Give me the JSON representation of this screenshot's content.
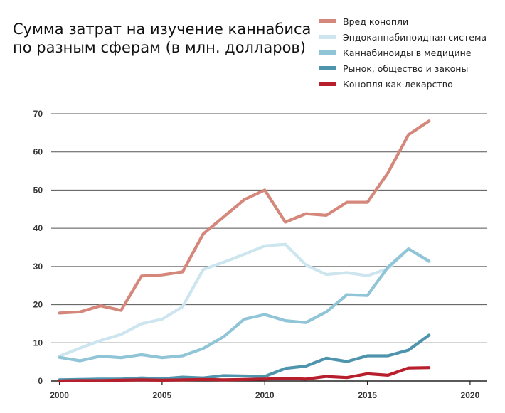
{
  "title_lines": [
    "Сумма затрат на изучение каннабиса",
    "по разным сферам (в млн. долларов)"
  ],
  "colors": {
    "harm": "#d4877a",
    "endocannabinoid": "#cde5ef",
    "medicine": "#90c5d8",
    "market": "#4e94ad",
    "drug": "#b81f2c"
  },
  "chart_data": {
    "type": "line",
    "title": "Сумма затрат на изучение каннабиса по разным сферам (в млн. долларов)",
    "xlabel": "",
    "ylabel": "",
    "xlim": [
      1999.6,
      2020.8
    ],
    "ylim": [
      0,
      70
    ],
    "x_ticks": [
      2000,
      2005,
      2010,
      2015,
      2020
    ],
    "y_ticks": [
      0,
      10,
      20,
      30,
      40,
      50,
      60,
      70
    ],
    "grid": "horizontal",
    "legend_position": "top-right",
    "x": [
      2000,
      2001,
      2002,
      2003,
      2004,
      2005,
      2006,
      2007,
      2008,
      2009,
      2010,
      2011,
      2012,
      2013,
      2014,
      2015,
      2016,
      2017,
      2018
    ],
    "series": [
      {
        "name": "Вред конопли",
        "color_key": "harm",
        "values": [
          17.8,
          18.1,
          19.7,
          18.5,
          27.5,
          27.8,
          28.6,
          38.5,
          43.0,
          47.5,
          50.0,
          41.6,
          43.8,
          43.4,
          46.8,
          46.8,
          54.5,
          64.5,
          68.1
        ]
      },
      {
        "name": "Эндоканнабиноидная система",
        "color_key": "endocannabinoid",
        "values": [
          6.5,
          8.6,
          10.6,
          12.2,
          15.0,
          16.2,
          19.5,
          29.2,
          31.1,
          33.2,
          35.4,
          35.8,
          30.4,
          27.9,
          28.4,
          27.6,
          29.4,
          34.6,
          31.3
        ]
      },
      {
        "name": "Каннабиноиды в медицине",
        "color_key": "medicine",
        "values": [
          6.2,
          5.3,
          6.5,
          6.1,
          6.9,
          6.1,
          6.6,
          8.5,
          11.6,
          16.2,
          17.4,
          15.8,
          15.3,
          18.1,
          22.6,
          22.4,
          29.8,
          34.6,
          31.4
        ]
      },
      {
        "name": "Рынок, общество и законы",
        "color_key": "market",
        "values": [
          0.3,
          0.4,
          0.5,
          0.5,
          0.8,
          0.6,
          1.0,
          0.8,
          1.4,
          1.3,
          1.2,
          3.3,
          3.9,
          6.0,
          5.1,
          6.6,
          6.6,
          8.1,
          12.0
        ]
      },
      {
        "name": "Конопля как лекарство",
        "color_key": "drug",
        "values": [
          0.0,
          0.1,
          0.1,
          0.2,
          0.3,
          0.2,
          0.3,
          0.4,
          0.3,
          0.4,
          0.5,
          0.7,
          0.5,
          1.2,
          0.9,
          1.9,
          1.5,
          3.4,
          3.5
        ]
      }
    ]
  }
}
